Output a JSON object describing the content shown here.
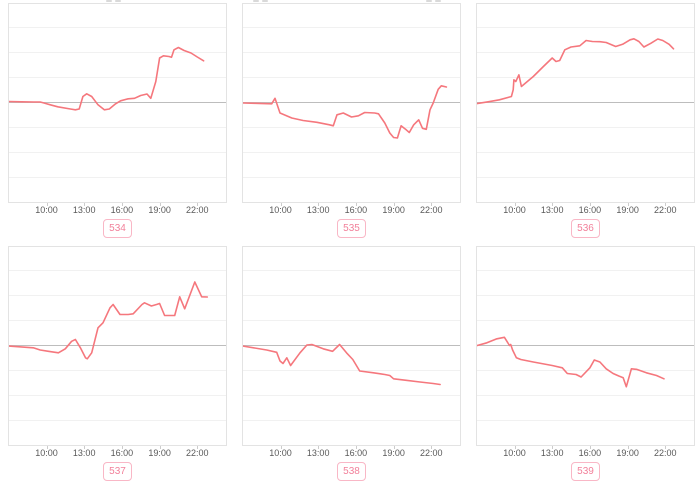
{
  "page": {
    "background": "#ffffff"
  },
  "colors": {
    "line": "#f5777d",
    "zero_line": "#bdbdbd",
    "grid_line": "#f1f1f1",
    "panel_border": "#e3e3e3",
    "tick_label": "#595959",
    "tick_mark": "#cccccc",
    "badge_text": "#f2809a",
    "badge_border": "#f9b7c6"
  },
  "x_axis": {
    "ticks": [
      {
        "hour": 10,
        "label": "10:00"
      },
      {
        "hour": 13,
        "label": "13:00"
      },
      {
        "hour": 16,
        "label": "16:00"
      },
      {
        "hour": 19,
        "label": "19:00"
      },
      {
        "hour": 22,
        "label": "22:00"
      }
    ]
  },
  "chart_data": [
    {
      "type": "line",
      "title": "534",
      "x_unit": "time of day (hours)",
      "xlim": [
        6.9,
        23.5
      ],
      "ylim": [
        -4,
        4
      ],
      "baseline": 0,
      "grid": true,
      "legend": false,
      "y_axis_labels_visible": false,
      "points": [
        [
          7.0,
          0.04
        ],
        [
          8.0,
          0.03
        ],
        [
          9.0,
          0.02
        ],
        [
          9.5,
          0.02
        ],
        [
          9.8,
          -0.02
        ],
        [
          10.3,
          -0.09
        ],
        [
          10.9,
          -0.17
        ],
        [
          11.9,
          -0.26
        ],
        [
          12.3,
          -0.29
        ],
        [
          12.6,
          -0.26
        ],
        [
          12.9,
          0.24
        ],
        [
          13.2,
          0.35
        ],
        [
          13.6,
          0.24
        ],
        [
          14.1,
          -0.09
        ],
        [
          14.6,
          -0.29
        ],
        [
          15.0,
          -0.26
        ],
        [
          15.5,
          -0.05
        ],
        [
          15.9,
          0.07
        ],
        [
          16.5,
          0.15
        ],
        [
          17.0,
          0.17
        ],
        [
          17.5,
          0.28
        ],
        [
          18.0,
          0.34
        ],
        [
          18.3,
          0.17
        ],
        [
          18.7,
          0.84
        ],
        [
          19.0,
          1.78
        ],
        [
          19.3,
          1.87
        ],
        [
          19.75,
          1.84
        ],
        [
          19.95,
          1.81
        ],
        [
          20.15,
          2.11
        ],
        [
          20.5,
          2.2
        ],
        [
          20.95,
          2.08
        ],
        [
          21.5,
          1.98
        ],
        [
          22.0,
          1.82
        ],
        [
          22.5,
          1.67
        ]
      ]
    },
    {
      "type": "line",
      "title": "535",
      "x_unit": "time of day (hours)",
      "xlim": [
        6.9,
        23.5
      ],
      "ylim": [
        -4,
        4
      ],
      "baseline": 0,
      "grid": true,
      "legend": false,
      "y_axis_labels_visible": false,
      "points": [
        [
          7.0,
          -0.02
        ],
        [
          8.0,
          -0.03
        ],
        [
          9.3,
          -0.05
        ],
        [
          9.56,
          0.17
        ],
        [
          9.96,
          -0.42
        ],
        [
          10.9,
          -0.62
        ],
        [
          11.8,
          -0.72
        ],
        [
          12.9,
          -0.79
        ],
        [
          13.9,
          -0.89
        ],
        [
          14.2,
          -0.93
        ],
        [
          14.5,
          -0.49
        ],
        [
          15.0,
          -0.42
        ],
        [
          15.65,
          -0.58
        ],
        [
          16.2,
          -0.53
        ],
        [
          16.7,
          -0.4
        ],
        [
          17.5,
          -0.42
        ],
        [
          17.8,
          -0.45
        ],
        [
          18.3,
          -0.82
        ],
        [
          18.7,
          -1.22
        ],
        [
          19.0,
          -1.4
        ],
        [
          19.3,
          -1.42
        ],
        [
          19.6,
          -0.93
        ],
        [
          20.0,
          -1.09
        ],
        [
          20.25,
          -1.2
        ],
        [
          20.6,
          -0.89
        ],
        [
          21.0,
          -0.69
        ],
        [
          21.3,
          -1.03
        ],
        [
          21.6,
          -1.07
        ],
        [
          21.9,
          -0.29
        ],
        [
          22.15,
          -0.02
        ],
        [
          22.55,
          0.53
        ],
        [
          22.8,
          0.67
        ],
        [
          23.2,
          0.62
        ]
      ]
    },
    {
      "type": "line",
      "title": "536",
      "x_unit": "time of day (hours)",
      "xlim": [
        6.9,
        23.5
      ],
      "ylim": [
        -4,
        4
      ],
      "baseline": 0,
      "grid": true,
      "legend": false,
      "y_axis_labels_visible": false,
      "points": [
        [
          6.9,
          -0.05
        ],
        [
          7.9,
          0.03
        ],
        [
          8.8,
          0.11
        ],
        [
          9.75,
          0.24
        ],
        [
          9.9,
          0.51
        ],
        [
          9.95,
          0.91
        ],
        [
          10.1,
          0.84
        ],
        [
          10.35,
          1.11
        ],
        [
          10.55,
          0.64
        ],
        [
          11.5,
          1.04
        ],
        [
          12.3,
          1.44
        ],
        [
          13.0,
          1.78
        ],
        [
          13.3,
          1.64
        ],
        [
          13.6,
          1.68
        ],
        [
          14.0,
          2.11
        ],
        [
          14.5,
          2.22
        ],
        [
          15.2,
          2.27
        ],
        [
          15.7,
          2.48
        ],
        [
          16.2,
          2.44
        ],
        [
          16.8,
          2.43
        ],
        [
          17.3,
          2.4
        ],
        [
          18.05,
          2.24
        ],
        [
          18.6,
          2.33
        ],
        [
          19.2,
          2.51
        ],
        [
          19.5,
          2.55
        ],
        [
          19.9,
          2.44
        ],
        [
          20.3,
          2.22
        ],
        [
          20.85,
          2.37
        ],
        [
          21.4,
          2.54
        ],
        [
          21.8,
          2.48
        ],
        [
          22.3,
          2.33
        ],
        [
          22.65,
          2.15
        ]
      ]
    },
    {
      "type": "line",
      "title": "537",
      "x_unit": "time of day (hours)",
      "xlim": [
        6.9,
        23.5
      ],
      "ylim": [
        -4,
        4
      ],
      "baseline": 0,
      "grid": true,
      "legend": false,
      "y_axis_labels_visible": false,
      "points": [
        [
          7.0,
          -0.02
        ],
        [
          8.95,
          -0.09
        ],
        [
          9.5,
          -0.18
        ],
        [
          10.15,
          -0.23
        ],
        [
          10.95,
          -0.29
        ],
        [
          11.5,
          -0.13
        ],
        [
          12.0,
          0.17
        ],
        [
          12.3,
          0.24
        ],
        [
          12.7,
          -0.09
        ],
        [
          13.1,
          -0.49
        ],
        [
          13.25,
          -0.53
        ],
        [
          13.6,
          -0.29
        ],
        [
          14.1,
          0.71
        ],
        [
          14.5,
          0.91
        ],
        [
          15.05,
          1.51
        ],
        [
          15.3,
          1.64
        ],
        [
          15.85,
          1.24
        ],
        [
          16.5,
          1.24
        ],
        [
          16.9,
          1.27
        ],
        [
          17.6,
          1.64
        ],
        [
          17.8,
          1.71
        ],
        [
          18.35,
          1.58
        ],
        [
          18.75,
          1.64
        ],
        [
          19.0,
          1.68
        ],
        [
          19.4,
          1.2
        ],
        [
          20.2,
          1.2
        ],
        [
          20.6,
          1.95
        ],
        [
          21.0,
          1.47
        ],
        [
          21.8,
          2.54
        ],
        [
          22.35,
          1.95
        ],
        [
          22.8,
          1.94
        ]
      ]
    },
    {
      "type": "line",
      "title": "538",
      "x_unit": "time of day (hours)",
      "xlim": [
        6.9,
        23.5
      ],
      "ylim": [
        -4,
        4
      ],
      "baseline": 0,
      "grid": true,
      "legend": false,
      "y_axis_labels_visible": false,
      "points": [
        [
          7.0,
          -0.02
        ],
        [
          8.9,
          -0.18
        ],
        [
          9.7,
          -0.27
        ],
        [
          9.96,
          -0.62
        ],
        [
          10.2,
          -0.72
        ],
        [
          10.5,
          -0.49
        ],
        [
          10.8,
          -0.8
        ],
        [
          11.55,
          -0.29
        ],
        [
          12.1,
          0.02
        ],
        [
          12.5,
          0.04
        ],
        [
          13.4,
          -0.13
        ],
        [
          14.15,
          -0.23
        ],
        [
          14.7,
          0.04
        ],
        [
          15.25,
          -0.29
        ],
        [
          15.75,
          -0.56
        ],
        [
          16.3,
          -1.02
        ],
        [
          17.4,
          -1.09
        ],
        [
          18.3,
          -1.16
        ],
        [
          18.7,
          -1.2
        ],
        [
          19.0,
          -1.33
        ],
        [
          20.0,
          -1.39
        ],
        [
          21.1,
          -1.46
        ],
        [
          22.15,
          -1.52
        ],
        [
          22.7,
          -1.56
        ]
      ]
    },
    {
      "type": "line",
      "title": "539",
      "x_unit": "time of day (hours)",
      "xlim": [
        6.9,
        23.5
      ],
      "ylim": [
        -4,
        4
      ],
      "baseline": 0,
      "grid": true,
      "legend": false,
      "y_axis_labels_visible": false,
      "points": [
        [
          6.9,
          -0.02
        ],
        [
          7.8,
          0.11
        ],
        [
          8.6,
          0.27
        ],
        [
          9.2,
          0.33
        ],
        [
          9.6,
          0.0
        ],
        [
          9.7,
          0.04
        ],
        [
          9.85,
          -0.18
        ],
        [
          10.15,
          -0.49
        ],
        [
          10.5,
          -0.56
        ],
        [
          11.5,
          -0.66
        ],
        [
          13.0,
          -0.8
        ],
        [
          13.8,
          -0.89
        ],
        [
          14.2,
          -1.12
        ],
        [
          14.9,
          -1.16
        ],
        [
          15.3,
          -1.26
        ],
        [
          16.0,
          -0.89
        ],
        [
          16.35,
          -0.58
        ],
        [
          16.8,
          -0.66
        ],
        [
          17.3,
          -0.93
        ],
        [
          17.85,
          -1.12
        ],
        [
          18.3,
          -1.22
        ],
        [
          18.65,
          -1.29
        ],
        [
          18.9,
          -1.65
        ],
        [
          19.3,
          -0.93
        ],
        [
          19.7,
          -0.95
        ],
        [
          20.5,
          -1.09
        ],
        [
          21.3,
          -1.2
        ],
        [
          21.9,
          -1.33
        ]
      ]
    }
  ]
}
